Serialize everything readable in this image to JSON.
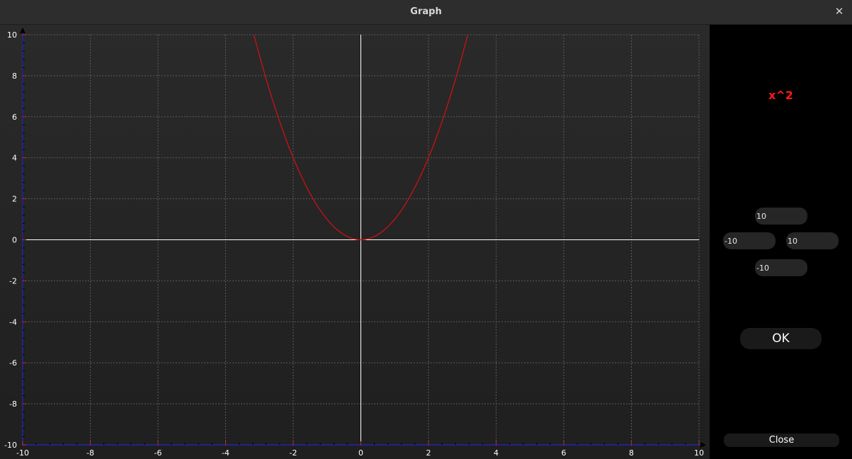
{
  "window": {
    "title": "Graph",
    "close_glyph": "✕"
  },
  "function_label": "x^2",
  "bounds": {
    "y_max": "10",
    "x_min": "-10",
    "x_max": "10",
    "y_min": "-10"
  },
  "buttons": {
    "ok": "OK",
    "close": "Close"
  },
  "colors": {
    "plot_background_top": "#2a2a2a",
    "plot_background_bottom": "#1f1f1f",
    "grid": "#5a5a5a",
    "axes": "#ffffff",
    "curve": "#cc1111",
    "frame_axes": "#22228a",
    "function_label": "#ff1a1a",
    "side_panel": "#000000"
  },
  "chart_data": {
    "type": "line",
    "expression": "x^2",
    "xlim": [
      -10,
      10
    ],
    "ylim": [
      -10,
      10
    ],
    "x_ticks": [
      -10,
      -8,
      -6,
      -4,
      -2,
      0,
      2,
      4,
      6,
      8,
      10
    ],
    "y_ticks": [
      -10,
      -8,
      -6,
      -4,
      -2,
      0,
      2,
      4,
      6,
      8,
      10
    ],
    "grid": true,
    "series": [
      {
        "x": [
          -3.16,
          -3,
          -2.5,
          -2,
          -1.5,
          -1,
          -0.5,
          0,
          0.5,
          1,
          1.5,
          2,
          2.5,
          3,
          3.16
        ],
        "y": [
          10,
          9,
          6.25,
          4,
          2.25,
          1,
          0.25,
          0,
          0.25,
          1,
          2.25,
          4,
          6.25,
          9,
          10
        ]
      }
    ]
  }
}
